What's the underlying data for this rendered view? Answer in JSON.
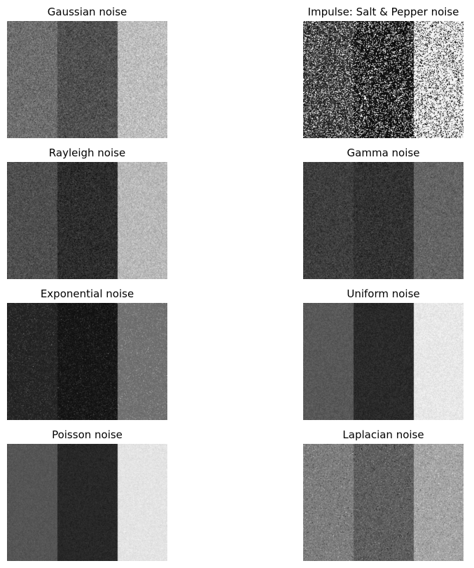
{
  "panels": [
    {
      "id": "gaussian",
      "title": "Gaussian noise",
      "model": "gaussian",
      "stripe_gray_levels": [
        110,
        80,
        190
      ],
      "noise_amount": 18
    },
    {
      "id": "impulse",
      "title": "Impulse: Salt & Pepper noise",
      "model": "salt-pepper",
      "stripe_gray_levels": [
        65,
        25,
        235
      ],
      "noise_amount": 0.38
    },
    {
      "id": "rayleigh",
      "title": "Rayleigh noise",
      "model": "rayleigh",
      "stripe_gray_levels": [
        78,
        45,
        185
      ],
      "noise_amount": 14
    },
    {
      "id": "gamma",
      "title": "Gamma noise",
      "model": "gamma",
      "stripe_gray_levels": [
        62,
        50,
        100
      ],
      "noise_amount": 14
    },
    {
      "id": "exponential",
      "title": "Exponential noise",
      "model": "exponential",
      "stripe_gray_levels": [
        40,
        25,
        115
      ],
      "noise_amount": 12
    },
    {
      "id": "uniform",
      "title": "Uniform noise",
      "model": "uniform",
      "stripe_gray_levels": [
        88,
        42,
        232
      ],
      "noise_amount": 14
    },
    {
      "id": "poisson",
      "title": "Poisson noise",
      "model": "poisson",
      "stripe_gray_levels": [
        85,
        40,
        228
      ],
      "noise_amount": 6
    },
    {
      "id": "laplacian",
      "title": "Laplacian noise",
      "model": "laplacian",
      "stripe_gray_levels": [
        125,
        95,
        165
      ],
      "noise_amount": 12
    }
  ]
}
